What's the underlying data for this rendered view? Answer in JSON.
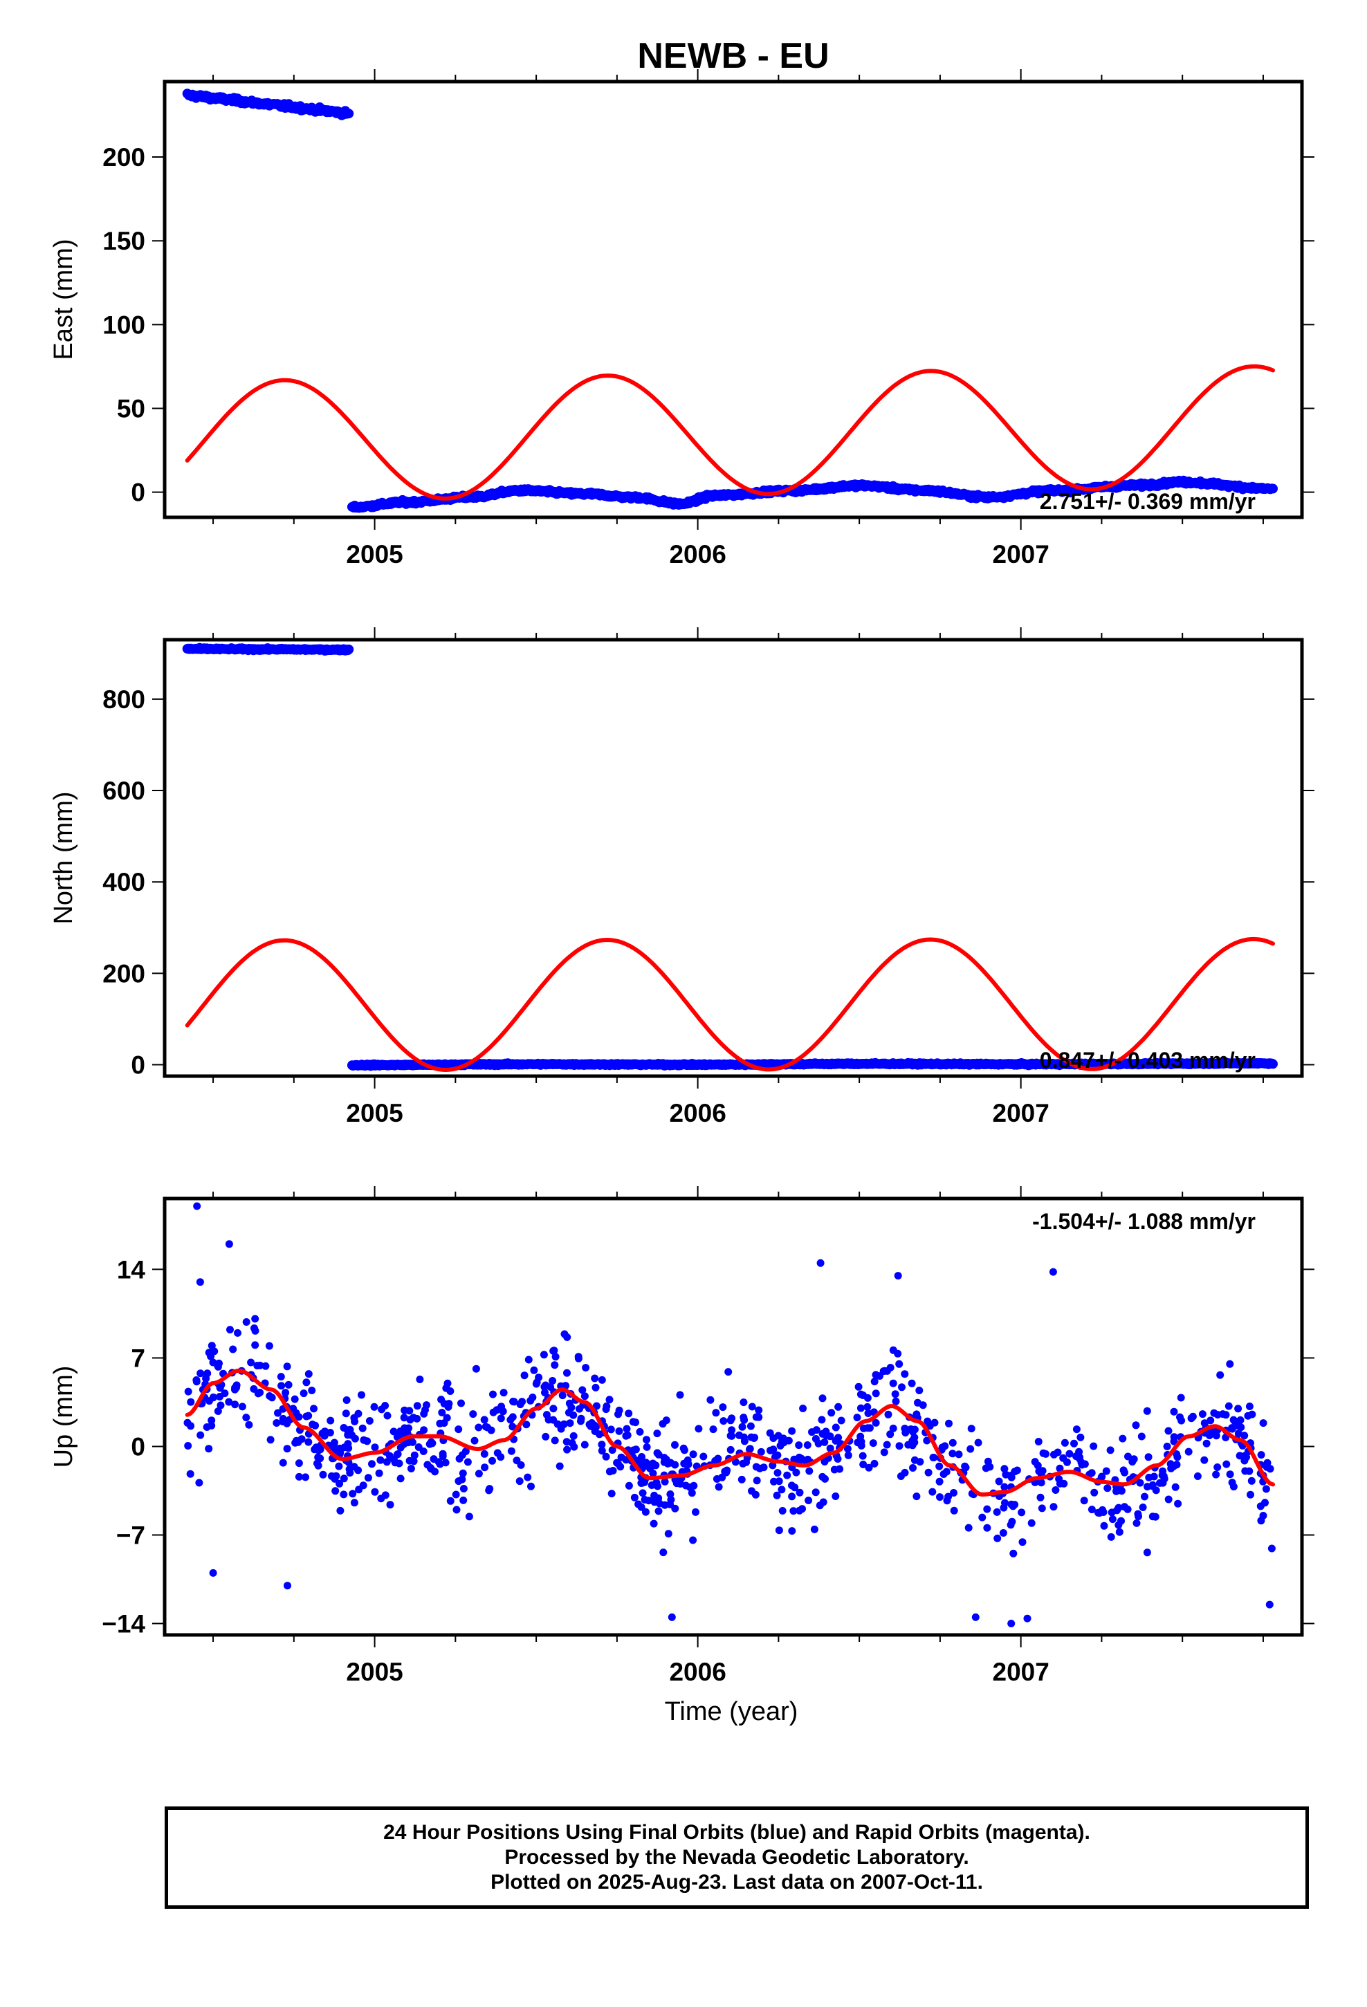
{
  "title": "NEWB - EU",
  "x_axis_label": "Time (year)",
  "footer": {
    "line1": "24 Hour Positions Using Final Orbits (blue) and Rapid Orbits (magenta).",
    "line2": "Processed by the Nevada Geodetic Laboratory.",
    "line3": "Plotted on 2025-Aug-23. Last data on 2007-Oct-11."
  },
  "chart_data": [
    {
      "type": "scatter",
      "ylabel": "East (mm)",
      "xlim": [
        2004.35,
        2007.87
      ],
      "ylim": [
        -15,
        245
      ],
      "xticks": [
        2005,
        2006,
        2007
      ],
      "yticks": [
        0,
        50,
        100,
        150,
        200
      ],
      "rate_text": "2.751+/- 0.369 mm/yr",
      "series": [
        {
          "role": "positions",
          "color": "#0000ff",
          "segments": [
            {
              "x_start": 2004.42,
              "x_end": 2004.92,
              "y_start": 237,
              "y_end": 226,
              "noise": 1.5
            },
            {
              "x_start": 2004.93,
              "x_end": 2007.78,
              "noise": 1.2,
              "anchors": [
                [
                  2004.93,
                  -9
                ],
                [
                  2005.1,
                  -6
                ],
                [
                  2005.3,
                  -3
                ],
                [
                  2005.45,
                  1
                ],
                [
                  2005.65,
                  -1
                ],
                [
                  2005.8,
                  -3
                ],
                [
                  2005.95,
                  -7
                ],
                [
                  2006.05,
                  -2
                ],
                [
                  2006.3,
                  1
                ],
                [
                  2006.5,
                  4
                ],
                [
                  2006.7,
                  1
                ],
                [
                  2006.9,
                  -3
                ],
                [
                  2007.1,
                  1
                ],
                [
                  2007.35,
                  4
                ],
                [
                  2007.5,
                  6
                ],
                [
                  2007.78,
                  2
                ]
              ]
            }
          ]
        },
        {
          "role": "model",
          "color": "#ff0000",
          "x_start": 2004.42,
          "x_end": 2007.78,
          "amplitude": 36,
          "offset_y": 30,
          "trend_per_year": 2.75,
          "ref_year": 2004.42,
          "peak_phase": 0.72
        }
      ]
    },
    {
      "type": "scatter",
      "ylabel": "North (mm)",
      "xlim": [
        2004.35,
        2007.87
      ],
      "ylim": [
        -25,
        930
      ],
      "xticks": [
        2005,
        2006,
        2007
      ],
      "yticks": [
        0,
        200,
        400,
        600,
        800
      ],
      "rate_text": "0.847+/- 0.403 mm/yr",
      "series": [
        {
          "role": "positions",
          "color": "#0000ff",
          "segments": [
            {
              "x_start": 2004.42,
              "x_end": 2004.92,
              "y_start": 910,
              "y_end": 908,
              "noise": 2
            },
            {
              "x_start": 2004.93,
              "x_end": 2007.78,
              "noise": 2,
              "anchors": [
                [
                  2004.93,
                  -1
                ],
                [
                  2005.5,
                  1
                ],
                [
                  2006.0,
                  0
                ],
                [
                  2006.5,
                  2
                ],
                [
                  2007.0,
                  1
                ],
                [
                  2007.78,
                  3
                ]
              ]
            }
          ]
        },
        {
          "role": "model",
          "color": "#ff0000",
          "x_start": 2004.42,
          "x_end": 2007.78,
          "amplitude": 142,
          "offset_y": 130,
          "trend_per_year": 0.85,
          "ref_year": 2004.42,
          "peak_phase": 0.72
        }
      ]
    },
    {
      "type": "scatter",
      "ylabel": "Up (mm)",
      "xlim": [
        2004.35,
        2007.87
      ],
      "ylim": [
        -14.9,
        19.6
      ],
      "xticks": [
        2005,
        2006,
        2007
      ],
      "yticks": [
        -14,
        -7,
        0,
        7,
        14
      ],
      "rate_text": "-1.504+/- 1.088 mm/yr",
      "series": [
        {
          "role": "positions",
          "color": "#0000ff",
          "x_start": 2004.42,
          "x_end": 2007.78,
          "count": 1000,
          "scatter_sd": 4.2,
          "extra_points": [
            [
              2004.45,
              19
            ],
            [
              2004.46,
              13
            ],
            [
              2004.55,
              16
            ],
            [
              2004.5,
              -10
            ],
            [
              2004.73,
              -11
            ],
            [
              2006.38,
              14.5
            ],
            [
              2006.62,
              13.5
            ],
            [
              2007.1,
              13.8
            ],
            [
              2006.86,
              -13.5
            ],
            [
              2006.97,
              -14
            ],
            [
              2007.02,
              -13.6
            ],
            [
              2005.92,
              -13.5
            ],
            [
              2007.77,
              -12.5
            ]
          ]
        },
        {
          "role": "model",
          "color": "#ff0000",
          "anchors": [
            [
              2004.42,
              2.5
            ],
            [
              2004.5,
              5
            ],
            [
              2004.58,
              6
            ],
            [
              2004.68,
              4.5
            ],
            [
              2004.78,
              1.5
            ],
            [
              2004.9,
              -1
            ],
            [
              2005.0,
              -0.5
            ],
            [
              2005.12,
              0.8
            ],
            [
              2005.2,
              0.8
            ],
            [
              2005.32,
              -0.2
            ],
            [
              2005.4,
              0.5
            ],
            [
              2005.5,
              3
            ],
            [
              2005.58,
              4.5
            ],
            [
              2005.65,
              3.5
            ],
            [
              2005.75,
              0
            ],
            [
              2005.85,
              -2.5
            ],
            [
              2005.95,
              -2.3
            ],
            [
              2006.05,
              -1.5
            ],
            [
              2006.15,
              -0.6
            ],
            [
              2006.25,
              -1.2
            ],
            [
              2006.33,
              -1.5
            ],
            [
              2006.42,
              -0.5
            ],
            [
              2006.52,
              2
            ],
            [
              2006.6,
              3.2
            ],
            [
              2006.68,
              2
            ],
            [
              2006.78,
              -1.5
            ],
            [
              2006.88,
              -3.8
            ],
            [
              2006.95,
              -3.6
            ],
            [
              2007.05,
              -2.5
            ],
            [
              2007.15,
              -2
            ],
            [
              2007.25,
              -2.8
            ],
            [
              2007.32,
              -3
            ],
            [
              2007.42,
              -1.5
            ],
            [
              2007.52,
              0.8
            ],
            [
              2007.6,
              1.6
            ],
            [
              2007.68,
              0.5
            ],
            [
              2007.78,
              -3
            ]
          ]
        }
      ]
    }
  ]
}
